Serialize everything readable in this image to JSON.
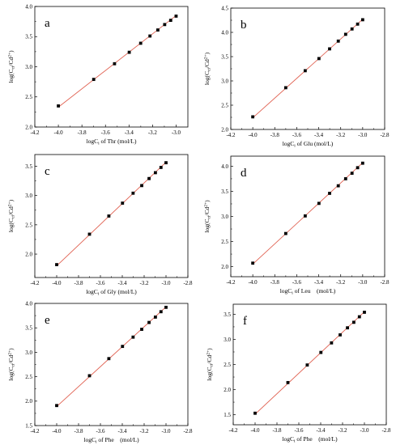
{
  "chart_data": [
    {
      "type": "scatter",
      "panel_label": "a",
      "xlabel": "logC",
      "xlabel_sub": "i",
      "xlabel_rest": " of Thr (mol/L)",
      "ylabel": "log(C",
      "ylabel_sub1": "ci",
      "ylabel_mid": "/Cd",
      "ylabel_sup": "2+",
      "ylabel_end": ")",
      "xlim": [
        -4.2,
        -2.9
      ],
      "ylim": [
        2.0,
        4.0
      ],
      "xticks": [
        "-4.2",
        "-4.0",
        "-3.8",
        "-3.6",
        "-3.4",
        "-3.2",
        "-3.0"
      ],
      "xtick_values": [
        -4.2,
        -4.0,
        -3.8,
        -3.6,
        -3.4,
        -3.2,
        -3.0
      ],
      "yticks": [
        "2.0",
        "2.5",
        "3.0",
        "3.5",
        "4.0"
      ],
      "ytick_values": [
        2.0,
        2.5,
        3.0,
        3.5,
        4.0
      ],
      "x": [
        -4.0,
        -3.7,
        -3.523,
        -3.398,
        -3.301,
        -3.222,
        -3.155,
        -3.097,
        -3.046,
        -3.0
      ],
      "y": [
        2.35,
        2.79,
        3.05,
        3.24,
        3.39,
        3.51,
        3.61,
        3.7,
        3.77,
        3.84
      ],
      "fit": [
        [
          -4.0,
          2.33
        ],
        [
          -3.0,
          3.85
        ]
      ],
      "grid": false
    },
    {
      "type": "scatter",
      "panel_label": "b",
      "xlabel": "logC",
      "xlabel_sub": "i",
      "xlabel_rest": " of Glu (mol/L)",
      "ylabel": "log(C",
      "ylabel_sub1": "ci",
      "ylabel_mid": "/Cd",
      "ylabel_sup": "2+",
      "ylabel_end": ")",
      "xlim": [
        -4.2,
        -2.8
      ],
      "ylim": [
        2.0,
        4.5
      ],
      "xticks": [
        "-4.2",
        "-4.0",
        "-3.8",
        "-3.6",
        "-3.4",
        "-3.2",
        "-3.0",
        "-2.8"
      ],
      "xtick_values": [
        -4.2,
        -4.0,
        -3.8,
        -3.6,
        -3.4,
        -3.2,
        -3.0,
        -2.8
      ],
      "yticks": [
        "2.0",
        "2.5",
        "3.0",
        "3.5",
        "4.0",
        "4.5"
      ],
      "ytick_values": [
        2.0,
        2.5,
        3.0,
        3.5,
        4.0,
        4.5
      ],
      "x": [
        -4.0,
        -3.7,
        -3.523,
        -3.398,
        -3.301,
        -3.222,
        -3.155,
        -3.097,
        -3.046,
        -3.0
      ],
      "y": [
        2.26,
        2.86,
        3.21,
        3.46,
        3.66,
        3.82,
        3.96,
        4.07,
        4.17,
        4.26
      ],
      "fit": [
        [
          -4.0,
          2.24
        ],
        [
          -3.0,
          4.27
        ]
      ],
      "grid": false
    },
    {
      "type": "scatter",
      "panel_label": "c",
      "xlabel": "logC",
      "xlabel_sub": "i",
      "xlabel_rest": " of Gly (mol/L)",
      "ylabel": "log(C",
      "ylabel_sub1": "ci",
      "ylabel_mid": "/Cd",
      "ylabel_sup": "2+",
      "ylabel_end": ")",
      "xlim": [
        -4.2,
        -2.8
      ],
      "ylim": [
        1.6,
        3.7
      ],
      "xticks": [
        "-4.2",
        "-4.0",
        "-3.8",
        "-3.6",
        "-3.4",
        "-3.2",
        "-3.0",
        "-2.8"
      ],
      "xtick_values": [
        -4.2,
        -4.0,
        -3.8,
        -3.6,
        -3.4,
        -3.2,
        -3.0,
        -2.8
      ],
      "yticks": [
        "2.0",
        "2.5",
        "3.0",
        "3.5"
      ],
      "ytick_values": [
        2.0,
        2.5,
        3.0,
        3.5
      ],
      "x": [
        -4.0,
        -3.7,
        -3.523,
        -3.398,
        -3.301,
        -3.222,
        -3.155,
        -3.097,
        -3.046,
        -3.0
      ],
      "y": [
        1.82,
        2.34,
        2.65,
        2.87,
        3.04,
        3.17,
        3.29,
        3.39,
        3.48,
        3.56
      ],
      "fit": [
        [
          -4.0,
          1.8
        ],
        [
          -3.0,
          3.57
        ]
      ],
      "grid": false
    },
    {
      "type": "scatter",
      "panel_label": "d",
      "xlabel": "logC",
      "xlabel_sub": "i",
      "xlabel_rest": " of Leu　(mol/L)",
      "ylabel": "log(C",
      "ylabel_sub1": "ci",
      "ylabel_mid": "/Cd",
      "ylabel_sup": "2+",
      "ylabel_end": ")",
      "xlim": [
        -4.2,
        -2.8
      ],
      "ylim": [
        1.8,
        4.2
      ],
      "xticks": [
        "-4.2",
        "-4.0",
        "-3.8",
        "-3.6",
        "-3.4",
        "-3.2",
        "-3.0",
        "-2.8"
      ],
      "xtick_values": [
        -4.2,
        -4.0,
        -3.8,
        -3.6,
        -3.4,
        -3.2,
        -3.0,
        -2.8
      ],
      "yticks": [
        "2.0",
        "2.5",
        "3.0",
        "3.5",
        "4.0"
      ],
      "ytick_values": [
        2.0,
        2.5,
        3.0,
        3.5,
        4.0
      ],
      "x": [
        -4.0,
        -3.7,
        -3.523,
        -3.398,
        -3.301,
        -3.222,
        -3.155,
        -3.097,
        -3.046,
        -3.0
      ],
      "y": [
        2.07,
        2.66,
        3.01,
        3.26,
        3.46,
        3.61,
        3.75,
        3.86,
        3.97,
        4.06
      ],
      "fit": [
        [
          -4.0,
          2.05
        ],
        [
          -3.0,
          4.07
        ]
      ],
      "grid": false
    },
    {
      "type": "scatter",
      "panel_label": "e",
      "xlabel": "logC",
      "xlabel_sub": "i",
      "xlabel_rest": " of Phe　(mol/L)",
      "ylabel": "log(C",
      "ylabel_sub1": "ci",
      "ylabel_mid": "/Cd",
      "ylabel_sup": "2+",
      "ylabel_end": ")",
      "xlim": [
        -4.2,
        -2.8
      ],
      "ylim": [
        1.5,
        4.0
      ],
      "xticks": [
        "-4.2",
        "-4.0",
        "-3.8",
        "-3.6",
        "-3.4",
        "-3.2",
        "-3.0",
        "-2.8"
      ],
      "xtick_values": [
        -4.2,
        -4.0,
        -3.8,
        -3.6,
        -3.4,
        -3.2,
        -3.0,
        -2.8
      ],
      "yticks": [
        "1.5",
        "2.0",
        "2.5",
        "3.0",
        "3.5",
        "4.0"
      ],
      "ytick_values": [
        1.5,
        2.0,
        2.5,
        3.0,
        3.5,
        4.0
      ],
      "x": [
        -4.0,
        -3.7,
        -3.523,
        -3.398,
        -3.301,
        -3.222,
        -3.155,
        -3.097,
        -3.046,
        -3.0
      ],
      "y": [
        1.91,
        2.52,
        2.87,
        3.12,
        3.31,
        3.47,
        3.61,
        3.72,
        3.83,
        3.92
      ],
      "fit": [
        [
          -4.0,
          1.89
        ],
        [
          -3.0,
          3.93
        ]
      ],
      "grid": false
    },
    {
      "type": "scatter",
      "panel_label": "f",
      "xlabel": "logC",
      "xlabel_sub": "i",
      "xlabel_rest": " of Phe　(mol/L)",
      "ylabel": "log(C",
      "ylabel_sub1": "ci",
      "ylabel_mid": "/Cd",
      "ylabel_sup": "2+",
      "ylabel_end": ")",
      "xlim": [
        -4.2,
        -2.8
      ],
      "ylim": [
        1.3,
        3.7
      ],
      "xticks": [
        "-4.2",
        "-4.0",
        "-3.8",
        "-3.6",
        "-3.4",
        "-3.2",
        "-3.0",
        "-2.8"
      ],
      "xtick_values": [
        -4.2,
        -4.0,
        -3.8,
        -3.6,
        -3.4,
        -3.2,
        -3.0,
        -2.8
      ],
      "yticks": [
        "1.5",
        "2.0",
        "2.5",
        "3.0",
        "3.5"
      ],
      "ytick_values": [
        1.5,
        2.0,
        2.5,
        3.0,
        3.5
      ],
      "x": [
        -4.0,
        -3.7,
        -3.523,
        -3.398,
        -3.301,
        -3.222,
        -3.155,
        -3.097,
        -3.046,
        -3.0
      ],
      "y": [
        1.53,
        2.14,
        2.49,
        2.74,
        2.93,
        3.09,
        3.23,
        3.34,
        3.45,
        3.54
      ],
      "fit": [
        [
          -4.0,
          1.51
        ],
        [
          -3.0,
          3.55
        ]
      ],
      "grid": false
    }
  ],
  "colors": {
    "fit_line": "#e06050",
    "points": "#000000",
    "axes": "#000000"
  }
}
